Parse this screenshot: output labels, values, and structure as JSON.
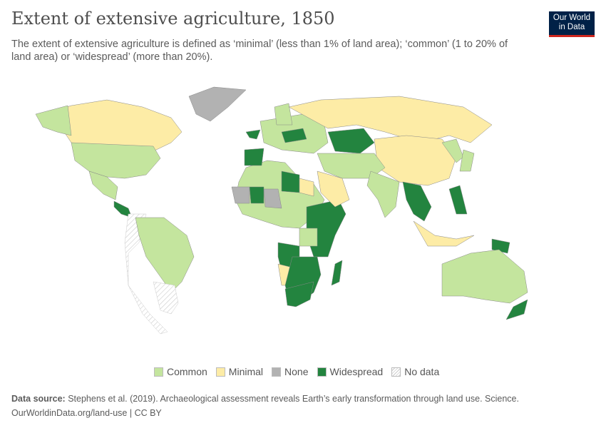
{
  "header": {
    "title": "Extent of extensive agriculture, 1850",
    "subtitle": "The extent of extensive agriculture is defined as ‘minimal’ (less than 1% of land area); ‘common’ (1 to 20% of land area) or ‘widespread’ (more than 20%).",
    "logo_line1": "Our World",
    "logo_line2": "in Data"
  },
  "legend": [
    {
      "label": "Common",
      "color": "#c4e59e"
    },
    {
      "label": "Minimal",
      "color": "#fdeca6"
    },
    {
      "label": "None",
      "color": "#b2b2b2"
    },
    {
      "label": "Widespread",
      "color": "#23843f"
    },
    {
      "label": "No data",
      "color": "hatched"
    }
  ],
  "footer": {
    "source_label": "Data source:",
    "source_text": "Stephens et al. (2019). Archaeological assessment reveals Earth’s early transformation through land use. Science.",
    "url": "OurWorldinData.org/land-use",
    "license": "CC BY"
  }
}
